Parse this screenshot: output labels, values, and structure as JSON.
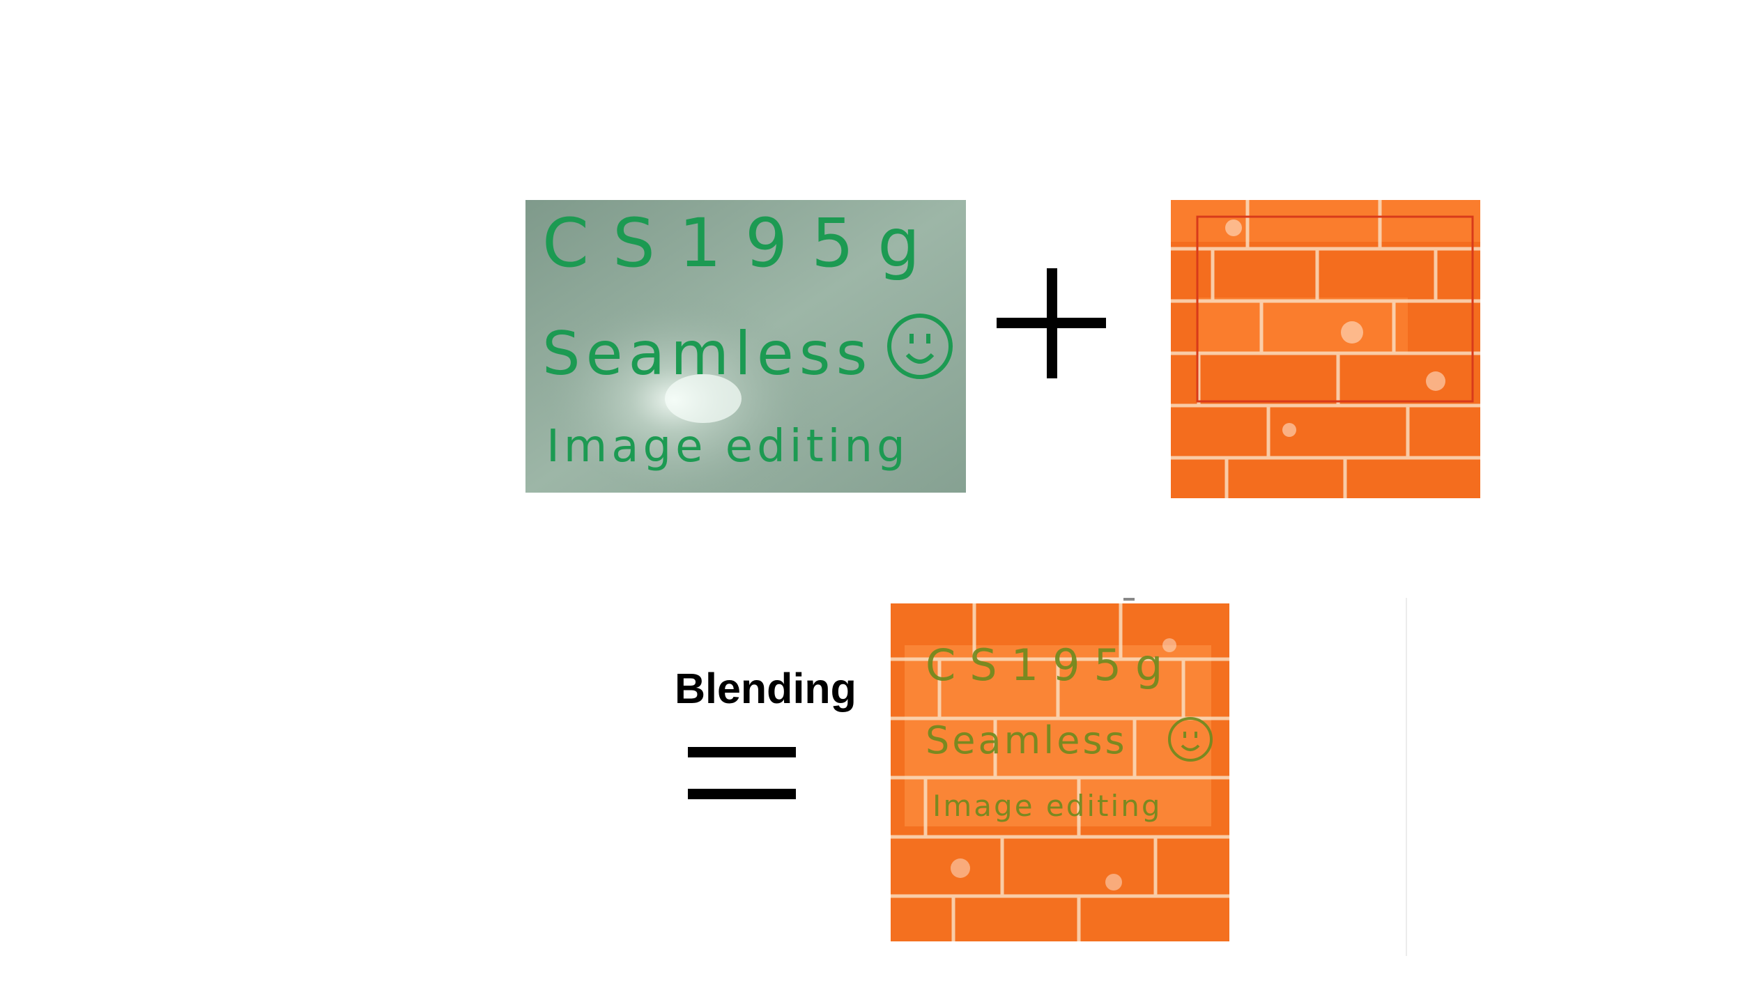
{
  "label": {
    "blending": "Blending"
  },
  "operators": {
    "plus": "+",
    "equals": "="
  },
  "images": {
    "source": {
      "lines": [
        "CS195g",
        "Seamless",
        "Image editing"
      ]
    },
    "target": {},
    "result": {
      "lines": [
        "CS195g",
        "Seamless",
        "Image editing"
      ]
    }
  },
  "colors": {
    "whiteboard": "#8aa596",
    "marker_green": "#1c9a52",
    "brick": "#f46d1e",
    "mortar": "#fbe3c8",
    "result_text": "#6d8a1e",
    "selection_box": "#d83a1a"
  },
  "icons": [
    "smiley-icon"
  ]
}
